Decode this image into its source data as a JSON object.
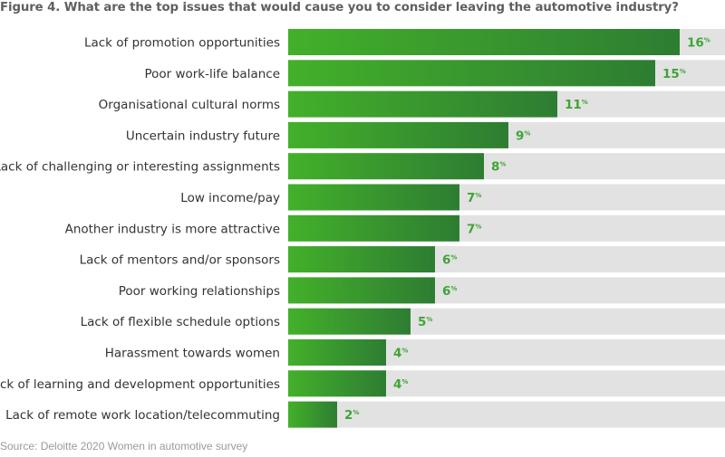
{
  "chart_data": {
    "type": "bar",
    "orientation": "horizontal",
    "title": "Figure 4. What are the top issues that would cause you to consider leaving the automotive industry?",
    "categories": [
      "Lack of promotion opportunities",
      "Poor work-life balance",
      "Organisational cultural norms",
      "Uncertain industry future",
      "Lack of challenging or interesting assignments",
      "Low income/pay",
      "Another industry is more attractive",
      "Lack of mentors and/or sponsors",
      "Poor working relationships",
      "Lack of flexible schedule options",
      "Harassment towards women",
      "Lack of learning and development opportunities",
      "Lack of remote work location/telecommuting"
    ],
    "values": [
      16,
      15,
      11,
      9,
      8,
      7,
      7,
      6,
      6,
      5,
      4,
      4,
      2
    ],
    "value_suffix": "%",
    "xlim": [
      0,
      18
    ],
    "grid": false,
    "legend": "none",
    "colors": {
      "bar_dark": "#2e7d32",
      "bar_light": "#43b02a",
      "track": "#e2e2e2",
      "value_text": "#3fa535",
      "label_text": "#333333"
    }
  },
  "source": "Source: Deloitte 2020 Women in automotive survey"
}
